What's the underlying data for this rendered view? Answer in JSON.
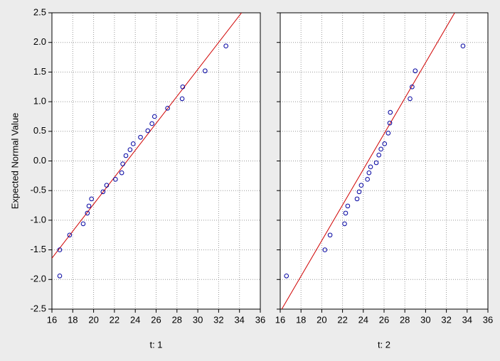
{
  "chart_data": [
    {
      "type": "scatter",
      "x_label": "t: 1",
      "y_label": "Expected Normal Value",
      "xlim": [
        16,
        36
      ],
      "xticks": [
        16,
        18,
        20,
        22,
        24,
        26,
        28,
        30,
        32,
        34,
        36
      ],
      "ylim": [
        -2.5,
        2.5
      ],
      "yticks": [
        {
          "value": -2.5,
          "label": "-2.5"
        },
        {
          "value": -2,
          "label": "-2.0"
        },
        {
          "value": -1.5,
          "label": "-1.5"
        },
        {
          "value": -1,
          "label": "-1.0"
        },
        {
          "value": -0.5,
          "label": "-0.5"
        },
        {
          "value": 0,
          "label": "0.0"
        },
        {
          "value": 0.5,
          "label": "0.5"
        },
        {
          "value": 1,
          "label": "1.0"
        },
        {
          "value": 1.5,
          "label": "1.5"
        },
        {
          "value": 2,
          "label": "2.0"
        },
        {
          "value": 2.5,
          "label": "2.5"
        }
      ],
      "grid": true,
      "color": "#0000a0",
      "line_color": "#d00000",
      "x": [
        16.75,
        16.75,
        17.7,
        19.0,
        19.4,
        19.55,
        19.8,
        20.9,
        21.25,
        22.1,
        22.7,
        22.8,
        23.1,
        23.5,
        23.8,
        24.5,
        25.2,
        25.6,
        25.85,
        27.1,
        28.5,
        28.55,
        30.7,
        32.7
      ],
      "values": [
        -1.94,
        -1.5,
        -1.25,
        -1.06,
        -0.88,
        -0.76,
        -0.64,
        -0.52,
        -0.41,
        -0.31,
        -0.2,
        -0.05,
        0.09,
        0.19,
        0.29,
        0.4,
        0.51,
        0.63,
        0.75,
        0.89,
        1.05,
        1.25,
        1.52,
        1.94
      ],
      "fit_line": {
        "x": [
          16,
          34.2
        ],
        "y": [
          -1.64,
          2.5
        ]
      }
    },
    {
      "type": "scatter",
      "x_label": "t: 2",
      "xlim": [
        16,
        36
      ],
      "xticks": [
        16,
        18,
        20,
        22,
        24,
        26,
        28,
        30,
        32,
        34,
        36
      ],
      "ylim": [
        -2.5,
        2.5
      ],
      "yticks": [
        -2.5,
        -2,
        -1.5,
        -1,
        -0.5,
        0,
        0.5,
        1,
        1.5,
        2,
        2.5
      ],
      "grid": true,
      "color": "#0000a0",
      "line_color": "#d00000",
      "x": [
        16.6,
        20.3,
        20.8,
        22.2,
        22.3,
        22.5,
        23.4,
        23.6,
        23.8,
        24.4,
        24.55,
        24.7,
        25.25,
        25.5,
        25.7,
        26.05,
        26.4,
        26.55,
        26.6,
        28.5,
        28.7,
        29.0,
        33.6
      ],
      "values": [
        -1.94,
        -1.5,
        -1.25,
        -1.06,
        -0.88,
        -0.76,
        -0.64,
        -0.52,
        -0.41,
        -0.31,
        -0.2,
        -0.1,
        -0.03,
        0.1,
        0.2,
        0.29,
        0.47,
        0.64,
        0.82,
        1.05,
        1.25,
        1.52,
        1.94
      ],
      "fit_line": {
        "x": [
          16.15,
          32.8
        ],
        "y": [
          -2.5,
          2.5
        ]
      }
    }
  ]
}
